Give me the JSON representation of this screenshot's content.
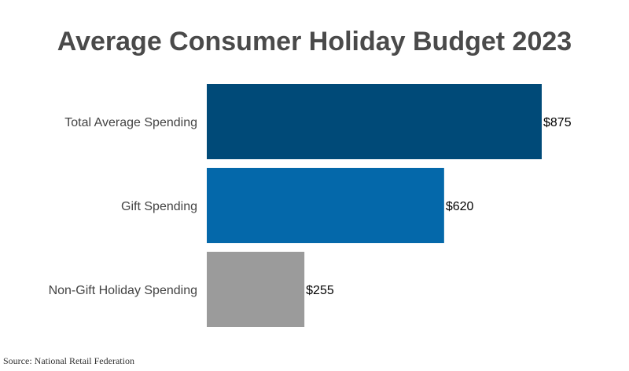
{
  "chart_data": {
    "type": "bar",
    "orientation": "horizontal",
    "title": "Average Consumer Holiday Budget 2023",
    "categories": [
      "Total Average Spending",
      "Gift Spending",
      "Non-Gift Holiday Spending"
    ],
    "values": [
      875,
      620,
      255
    ],
    "data_labels": [
      "$875",
      "$620",
      "$255"
    ],
    "colors": [
      "#004a78",
      "#0468aa",
      "#9b9b9b"
    ],
    "xlim": [
      0,
      875
    ],
    "xlabel": "",
    "ylabel": "",
    "grid": false,
    "legend": "none"
  },
  "source": "Source: National Retail Federation"
}
